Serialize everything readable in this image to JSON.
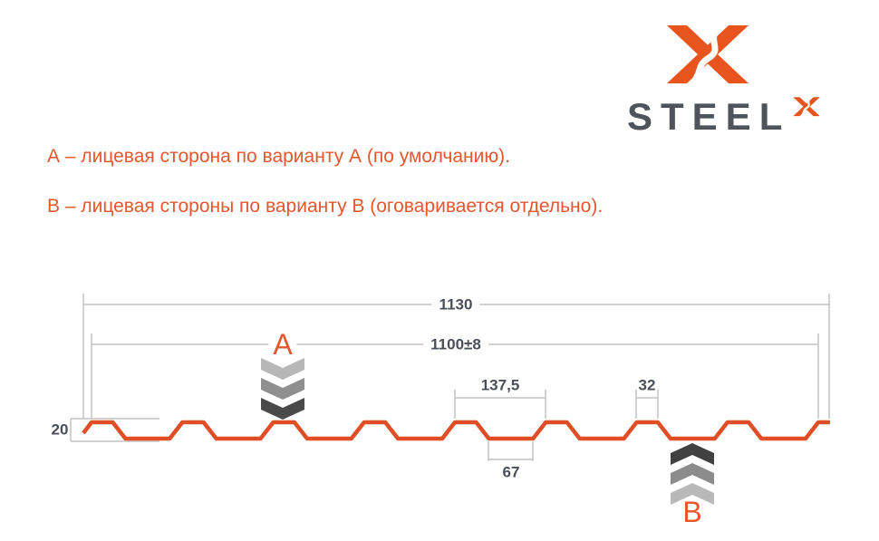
{
  "logo": {
    "wordmark": "STEEL",
    "icon": "steelx-x-mark-icon",
    "sup_icon": "steelx-x-mark-small-icon"
  },
  "notes": {
    "line_a": "А – лицевая сторона по варианту А (по умолчанию).",
    "line_b": "В – лицевая стороны по варианту В (оговаривается отдельно)."
  },
  "diagram": {
    "marker_a": "A",
    "marker_b": "B",
    "dims": {
      "total_width": "1130",
      "working_width": "1100±8",
      "rib_pitch": "137,5",
      "rib_top_width": "32",
      "rib_bottom_width": "67",
      "profile_height": "20"
    }
  },
  "colors": {
    "accent_orange": "#E4572F",
    "profile_orange": "#E04E26",
    "logo_orange": "#E8541E",
    "wordmark_gray": "#4E545A",
    "dim_text_gray": "#4A4F58",
    "dim_line_gray": "#C3C3C3",
    "chevron_grays_a": [
      "#B7B7B7",
      "#8F8F8F",
      "#4A4A4A"
    ],
    "chevron_grays_b": [
      "#414141",
      "#8C8C8C",
      "#B9B9B9"
    ]
  }
}
